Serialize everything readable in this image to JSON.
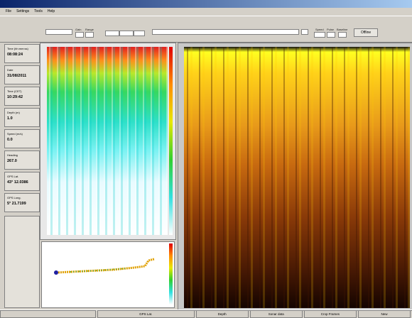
{
  "menu": [
    "File",
    "Settings",
    "Tools",
    "Help"
  ],
  "toolbar": {
    "labels": [
      "Gain",
      "Range",
      "Speed",
      "Pulse",
      "Baseline"
    ],
    "button": "Offline"
  },
  "readouts": [
    {
      "label": "Time (hh:mm:ss)",
      "value": "08:08:24"
    },
    {
      "label": "Date",
      "value": "31/08/2011"
    },
    {
      "label": "Time (CET)",
      "value": "10:29:42"
    },
    {
      "label": "Depth (m)",
      "value": "1.0"
    },
    {
      "label": "Speed (m/s)",
      "value": "0.0"
    },
    {
      "label": "Heading",
      "value": "267.0"
    },
    {
      "label": "GPS Lat.",
      "value": "43° 12.0386"
    },
    {
      "label": "GPS Long.",
      "value": "5° 21.7199"
    }
  ],
  "statusbar": [
    "GPS Lat.",
    "Depth",
    "Sonar data",
    "Crop Frames",
    "New"
  ]
}
